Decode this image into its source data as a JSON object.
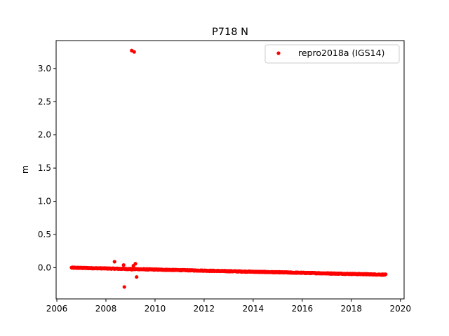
{
  "chart_data": {
    "type": "scatter",
    "title": "P718 N",
    "xlabel": "",
    "ylabel": "m",
    "xlim": [
      2005.97,
      2020.15
    ],
    "ylim": [
      -0.47,
      3.42
    ],
    "x_ticks": [
      2006,
      2008,
      2010,
      2012,
      2014,
      2016,
      2018,
      2020
    ],
    "y_ticks": [
      0.0,
      0.5,
      1.0,
      1.5,
      2.0,
      2.5,
      3.0
    ],
    "x_tick_labels": [
      "2006",
      "2008",
      "2010",
      "2012",
      "2014",
      "2016",
      "2018",
      "2020"
    ],
    "y_tick_labels": [
      "0.0",
      "0.5",
      "1.0",
      "1.5",
      "2.0",
      "2.5",
      "3.0"
    ],
    "grid": false,
    "legend": {
      "placement": "top-right",
      "entries": [
        "repro2018a (IGS14)"
      ]
    },
    "series": [
      {
        "name": "repro2018a (IGS14)",
        "color": "#ff0000",
        "trend": {
          "x_start": 2006.6,
          "x_end": 2019.4,
          "y_start": 0.0,
          "y_end": -0.105
        },
        "outliers": [
          {
            "x": 2009.05,
            "y": 3.27
          },
          {
            "x": 2009.15,
            "y": 3.25
          },
          {
            "x": 2008.35,
            "y": 0.09
          },
          {
            "x": 2008.72,
            "y": 0.04
          },
          {
            "x": 2009.2,
            "y": 0.06
          },
          {
            "x": 2009.12,
            "y": 0.03
          },
          {
            "x": 2008.75,
            "y": -0.29
          },
          {
            "x": 2009.25,
            "y": -0.14
          },
          {
            "x": 2009.05,
            "y": -0.03
          }
        ]
      }
    ]
  }
}
